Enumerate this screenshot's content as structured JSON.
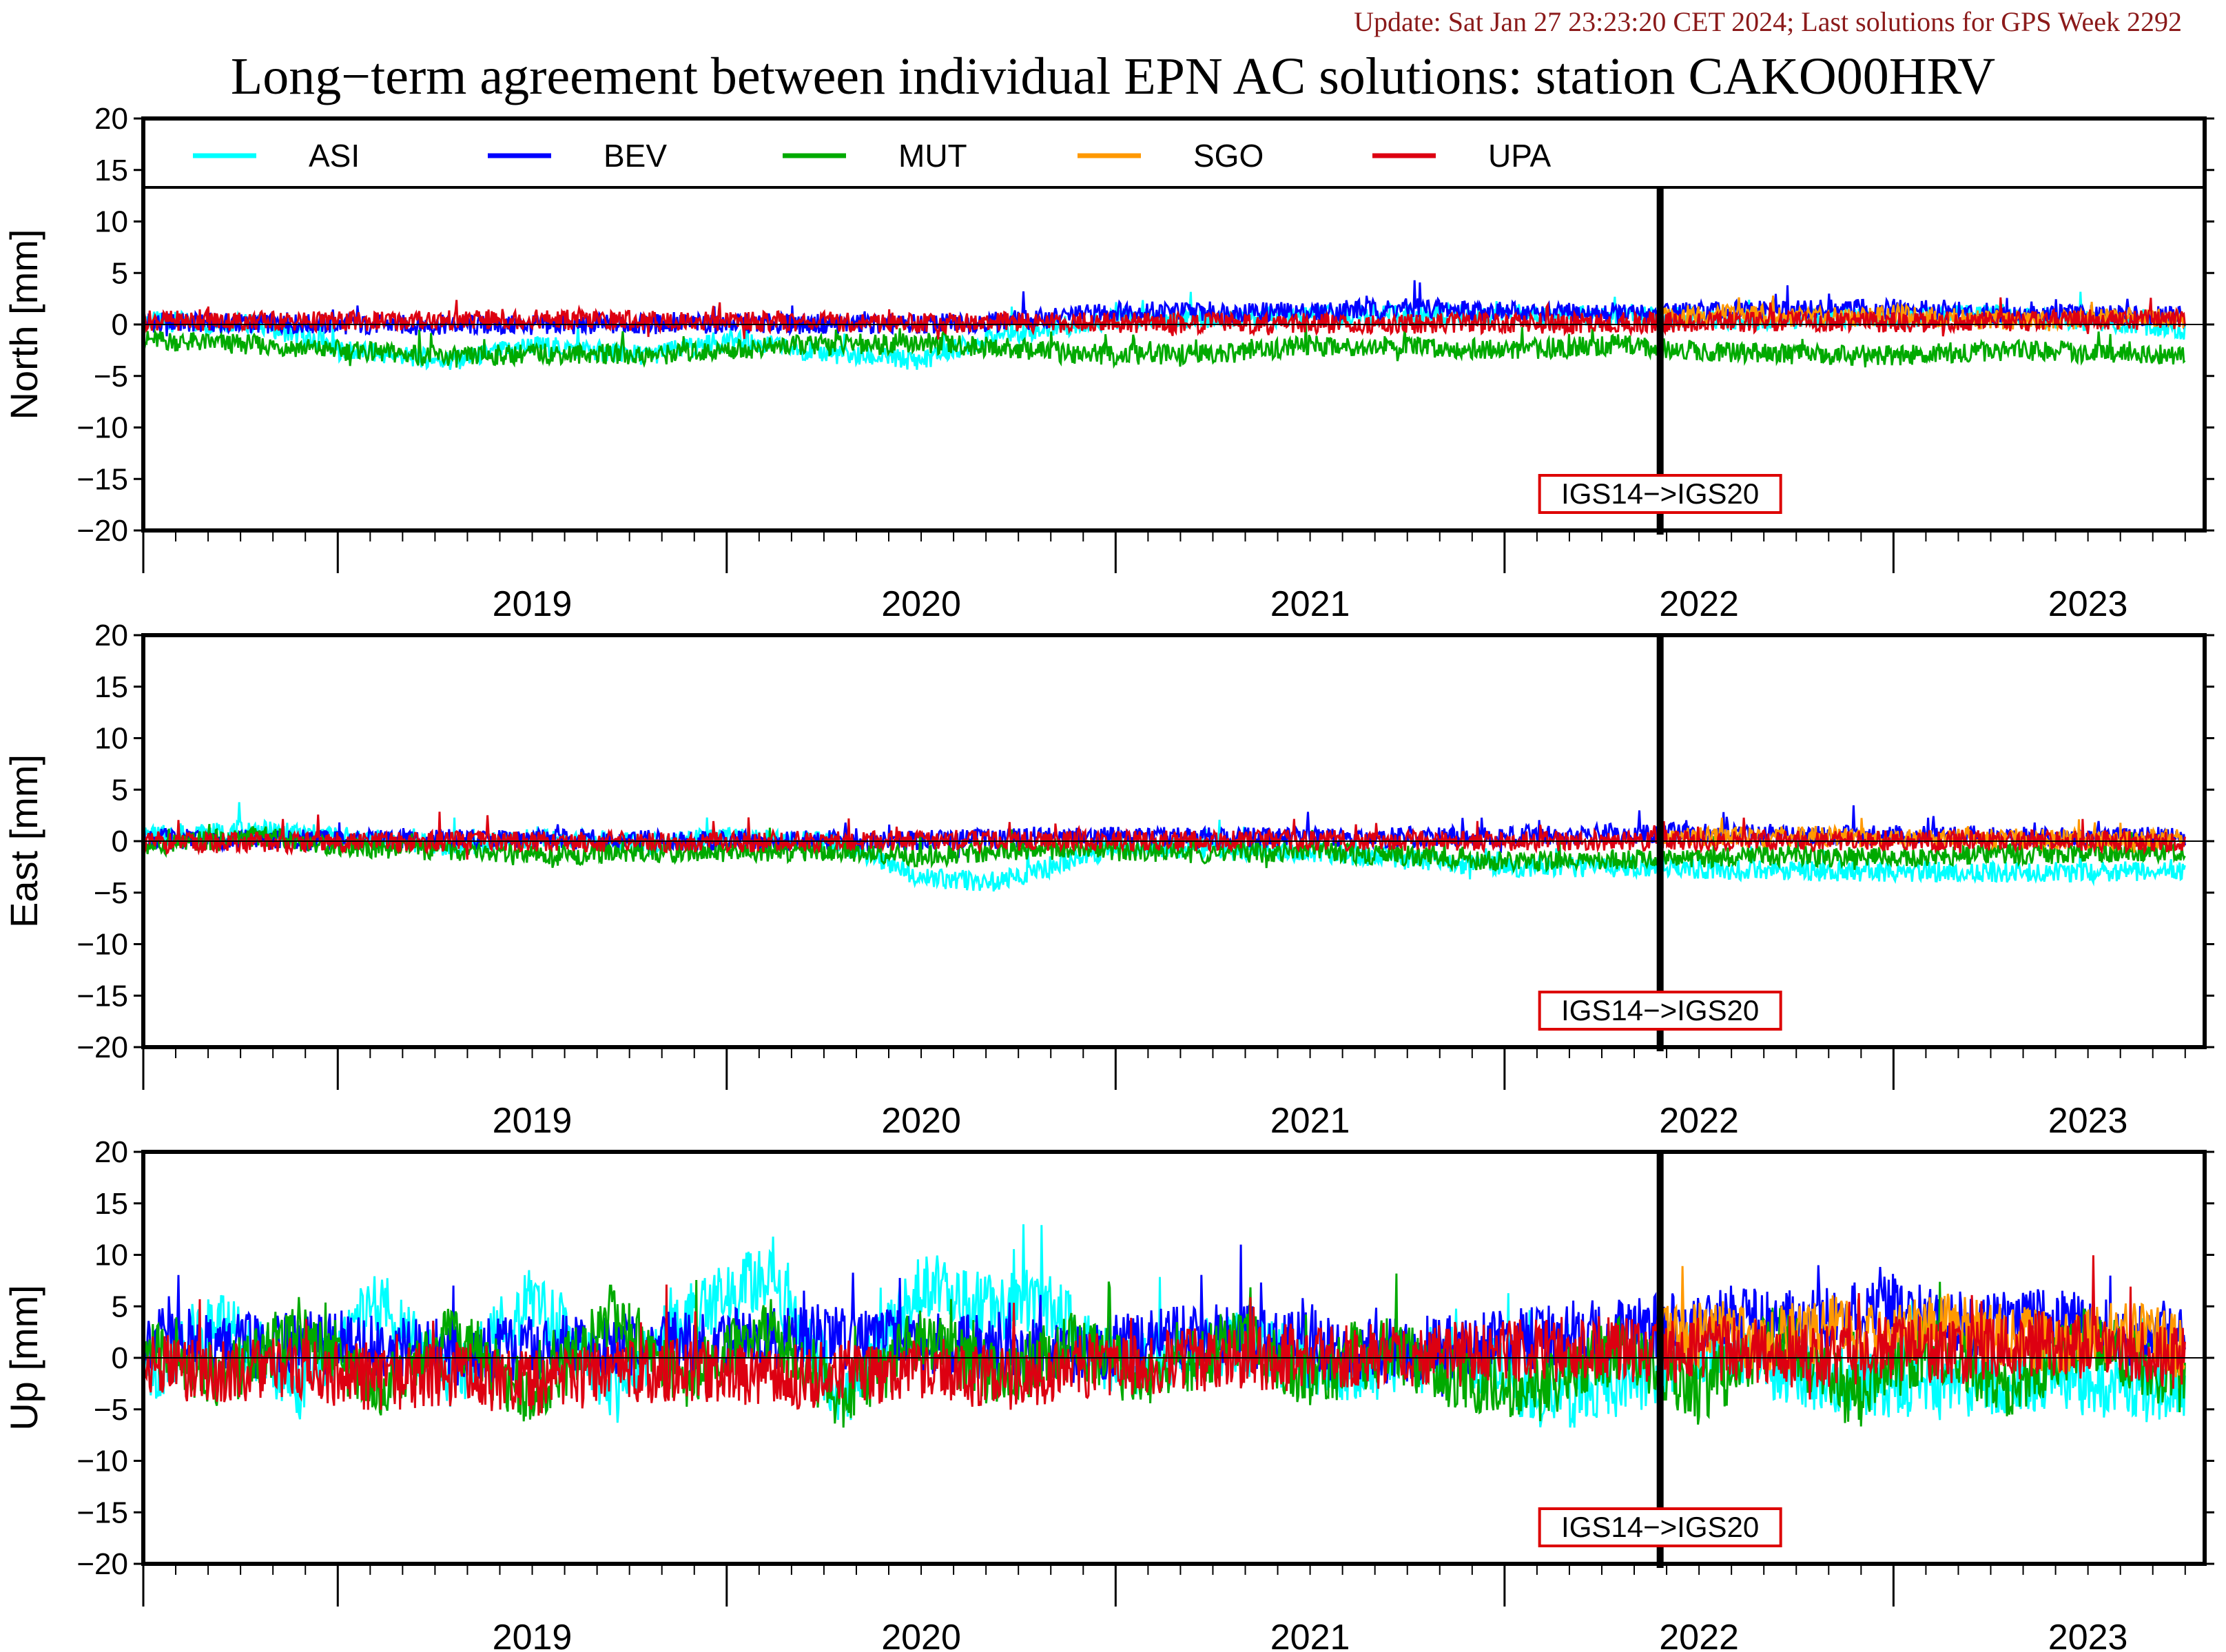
{
  "header": {
    "update": "Update: Sat Jan 27 23:23:20 CET 2024; Last solutions for GPS Week 2292",
    "title": "Long−term agreement between individual EPN AC solutions: station CAKO00HRV"
  },
  "colors": {
    "ASI": "#00ffff",
    "BEV": "#0000ff",
    "MUT": "#00aa00",
    "SGO": "#ff9900",
    "UPA": "#dd0011",
    "marker_box": "#dd0000"
  },
  "legend": [
    "ASI",
    "BEV",
    "MUT",
    "SGO",
    "UPA"
  ],
  "chart_data": [
    {
      "type": "line",
      "ylabel": "North [mm]",
      "ylim": [
        -20,
        20
      ],
      "yticks": [
        20,
        15,
        10,
        5,
        0,
        -5,
        -10,
        -15,
        -20
      ],
      "xlim": [
        2018.5,
        2023.8
      ],
      "xtick_labels": [
        "2019",
        "2020",
        "2021",
        "2022",
        "2023"
      ],
      "reference_line": 0,
      "marker": {
        "x": 2022.4,
        "label": "IGS14−>IGS20"
      },
      "series": [
        {
          "name": "ASI",
          "x": [
            2018.5,
            2018.8,
            2019.0,
            2019.3,
            2019.5,
            2019.8,
            2020.0,
            2020.3,
            2020.5,
            2020.7,
            2021.0,
            2021.5,
            2022.0,
            2022.3,
            2022.6,
            2023.0,
            2023.3,
            2023.75
          ],
          "y": [
            0.3,
            0.1,
            -2.5,
            -3.5,
            -2.0,
            -3.0,
            -1.5,
            -3.0,
            -3.5,
            -1.0,
            0.5,
            0.8,
            1.0,
            0.8,
            0.5,
            0.7,
            1.0,
            -0.5
          ]
        },
        {
          "name": "BEV",
          "x": [
            2018.5,
            2019.0,
            2019.5,
            2020.0,
            2020.5,
            2020.8,
            2021.0,
            2021.5,
            2021.8,
            2022.0,
            2022.3,
            2022.6,
            2023.0,
            2023.3,
            2023.75
          ],
          "y": [
            0.2,
            0.0,
            -0.1,
            0.1,
            0.0,
            0.5,
            1.3,
            1.2,
            1.6,
            1.2,
            1.0,
            1.3,
            1.5,
            1.0,
            0.8
          ]
        },
        {
          "name": "MUT",
          "x": [
            2018.5,
            2018.8,
            2019.0,
            2019.3,
            2019.5,
            2019.8,
            2020.0,
            2020.2,
            2020.5,
            2020.8,
            2021.0,
            2021.3,
            2021.5,
            2021.8,
            2022.0,
            2022.3,
            2022.6,
            2023.0,
            2023.3,
            2023.75
          ],
          "y": [
            -1.5,
            -2.0,
            -2.5,
            -3.2,
            -2.8,
            -3.0,
            -2.5,
            -2.0,
            -1.8,
            -2.5,
            -3.0,
            -2.8,
            -2.0,
            -2.2,
            -2.5,
            -2.0,
            -2.8,
            -3.0,
            -2.5,
            -3.0
          ]
        },
        {
          "name": "SGO",
          "x": [
            2022.4,
            2022.6,
            2022.8,
            2023.0,
            2023.2,
            2023.4,
            2023.6,
            2023.75
          ],
          "y": [
            0.8,
            1.0,
            0.6,
            0.9,
            0.5,
            0.3,
            0.7,
            0.6
          ]
        },
        {
          "name": "UPA",
          "x": [
            2018.5,
            2019.0,
            2019.5,
            2020.0,
            2020.5,
            2021.0,
            2021.5,
            2022.0,
            2022.4,
            2022.8,
            2023.0,
            2023.3,
            2023.5,
            2023.75
          ],
          "y": [
            0.4,
            0.3,
            0.5,
            0.3,
            0.2,
            0.2,
            0.1,
            0.1,
            0.2,
            0.3,
            0.2,
            0.3,
            0.5,
            0.4
          ]
        }
      ]
    },
    {
      "type": "line",
      "ylabel": "East [mm]",
      "ylim": [
        -20,
        20
      ],
      "yticks": [
        20,
        15,
        10,
        5,
        0,
        -5,
        -10,
        -15,
        -20
      ],
      "xlim": [
        2018.5,
        2023.8
      ],
      "xtick_labels": [
        "2019",
        "2020",
        "2021",
        "2022",
        "2023"
      ],
      "reference_line": 0,
      "marker": {
        "x": 2022.4,
        "label": "IGS14−>IGS20"
      },
      "series": [
        {
          "name": "ASI",
          "x": [
            2018.5,
            2018.8,
            2019.0,
            2019.3,
            2019.5,
            2019.8,
            2020.0,
            2020.3,
            2020.5,
            2020.7,
            2021.0,
            2021.5,
            2021.8,
            2022.0,
            2022.3,
            2022.6,
            2023.0,
            2023.3,
            2023.75
          ],
          "y": [
            0.5,
            1.0,
            0.5,
            -0.5,
            0.2,
            0.0,
            0.3,
            -0.2,
            -3.5,
            -4.0,
            -0.5,
            -1.0,
            -2.0,
            -2.5,
            -2.5,
            -2.8,
            -3.0,
            -3.0,
            -3.0
          ]
        },
        {
          "name": "BEV",
          "x": [
            2018.5,
            2019.0,
            2019.5,
            2020.0,
            2020.5,
            2021.0,
            2021.5,
            2022.0,
            2022.4,
            2022.8,
            2023.2,
            2023.75
          ],
          "y": [
            0.2,
            0.1,
            0.2,
            0.0,
            0.1,
            0.4,
            0.3,
            0.5,
            0.8,
            0.6,
            0.5,
            0.4
          ]
        },
        {
          "name": "MUT",
          "x": [
            2018.5,
            2018.8,
            2019.0,
            2019.3,
            2019.5,
            2019.8,
            2020.0,
            2020.3,
            2020.5,
            2020.8,
            2021.0,
            2021.3,
            2021.5,
            2021.8,
            2022.0,
            2022.3,
            2022.6,
            2023.0,
            2023.3,
            2023.75
          ],
          "y": [
            -0.5,
            0.5,
            -0.5,
            -1.0,
            -1.5,
            -1.0,
            -1.2,
            -1.0,
            -1.5,
            -0.8,
            -1.0,
            -1.2,
            -1.0,
            -1.5,
            -2.0,
            -1.8,
            -1.5,
            -1.5,
            -1.2,
            -1.0
          ]
        },
        {
          "name": "SGO",
          "x": [
            2022.4,
            2022.6,
            2022.8,
            2023.0,
            2023.2,
            2023.4,
            2023.6,
            2023.75
          ],
          "y": [
            0.3,
            0.4,
            0.5,
            0.2,
            0.3,
            0.2,
            0.1,
            0.3
          ]
        },
        {
          "name": "UPA",
          "x": [
            2018.5,
            2019.0,
            2019.5,
            2020.0,
            2020.5,
            2021.0,
            2021.5,
            2022.0,
            2022.4,
            2022.8,
            2023.2,
            2023.75
          ],
          "y": [
            -0.2,
            -0.1,
            0.0,
            -0.1,
            0.1,
            0.0,
            0.1,
            0.0,
            0.1,
            0.0,
            0.1,
            -0.1
          ]
        }
      ]
    },
    {
      "type": "line",
      "ylabel": "Up [mm]",
      "ylim": [
        -20,
        20
      ],
      "yticks": [
        20,
        15,
        10,
        5,
        0,
        -5,
        -10,
        -15,
        -20
      ],
      "xlim": [
        2018.5,
        2023.8
      ],
      "xtick_labels": [
        "2019",
        "2020",
        "2021",
        "2022",
        "2023"
      ],
      "reference_line": 0,
      "marker": {
        "x": 2022.4,
        "label": "IGS14−>IGS20"
      },
      "series": [
        {
          "name": "ASI",
          "x": [
            2018.5,
            2018.7,
            2018.9,
            2019.1,
            2019.3,
            2019.5,
            2019.7,
            2019.9,
            2020.1,
            2020.3,
            2020.5,
            2020.7,
            2020.8,
            2021.0,
            2021.3,
            2021.6,
            2021.9,
            2022.1,
            2022.3,
            2022.5,
            2022.8,
            2023.1,
            2023.4,
            2023.75
          ],
          "y": [
            -2.0,
            4.0,
            -3.0,
            5.0,
            -2.0,
            6.0,
            -3.0,
            4.0,
            8.0,
            -4.0,
            7.0,
            5.0,
            6.0,
            -1.0,
            1.5,
            -1.5,
            0.5,
            -4.0,
            -3.0,
            1.0,
            -2.0,
            -3.0,
            -2.0,
            -3.5
          ]
        },
        {
          "name": "BEV",
          "x": [
            2018.5,
            2018.8,
            2019.0,
            2019.3,
            2019.6,
            2019.9,
            2020.2,
            2020.5,
            2020.8,
            2021.0,
            2021.3,
            2021.6,
            2021.9,
            2022.1,
            2022.4,
            2022.6,
            2022.8,
            2023.0,
            2023.2,
            2023.4,
            2023.6,
            2023.75
          ],
          "y": [
            2.0,
            1.0,
            1.5,
            0.5,
            1.0,
            1.5,
            2.0,
            1.5,
            0.5,
            1.0,
            2.5,
            0.5,
            1.0,
            2.0,
            3.0,
            4.0,
            3.5,
            5.0,
            3.0,
            4.0,
            2.0,
            1.5
          ]
        },
        {
          "name": "MUT",
          "x": [
            2018.5,
            2018.7,
            2018.9,
            2019.1,
            2019.3,
            2019.5,
            2019.7,
            2019.9,
            2020.1,
            2020.3,
            2020.5,
            2020.7,
            2020.9,
            2021.1,
            2021.3,
            2021.5,
            2021.7,
            2021.9,
            2022.1,
            2022.3,
            2022.5,
            2022.7,
            2022.9,
            2023.1,
            2023.3,
            2023.5,
            2023.75
          ],
          "y": [
            1.0,
            -2.0,
            3.0,
            -3.0,
            2.0,
            -4.0,
            4.0,
            -2.0,
            3.0,
            -4.0,
            2.0,
            -2.0,
            1.5,
            -3.0,
            2.0,
            -2.0,
            1.0,
            -2.5,
            -3.0,
            1.0,
            -3.5,
            2.0,
            -4.0,
            1.0,
            -3.0,
            2.0,
            -2.5
          ]
        },
        {
          "name": "SGO",
          "x": [
            2022.4,
            2022.55,
            2022.7,
            2022.85,
            2023.0,
            2023.15,
            2023.3,
            2023.45,
            2023.6,
            2023.75
          ],
          "y": [
            1.5,
            2.5,
            1.8,
            3.0,
            2.0,
            3.5,
            2.2,
            1.5,
            2.5,
            1.0
          ]
        },
        {
          "name": "UPA",
          "x": [
            2018.5,
            2018.7,
            2018.9,
            2019.1,
            2019.3,
            2019.5,
            2019.7,
            2019.9,
            2020.1,
            2020.3,
            2020.5,
            2020.7,
            2021.0,
            2021.5,
            2022.0,
            2022.2,
            2022.4,
            2022.6,
            2022.8,
            2023.0,
            2023.2,
            2023.4,
            2023.6,
            2023.75
          ],
          "y": [
            -0.5,
            -1.5,
            -1.0,
            -2.0,
            -1.5,
            -2.5,
            -1.5,
            -1.0,
            -2.0,
            -1.5,
            -1.0,
            -2.0,
            -0.5,
            0.0,
            0.5,
            1.0,
            0.5,
            1.0,
            0.0,
            1.0,
            0.5,
            1.5,
            0.5,
            0.0
          ]
        }
      ]
    }
  ]
}
